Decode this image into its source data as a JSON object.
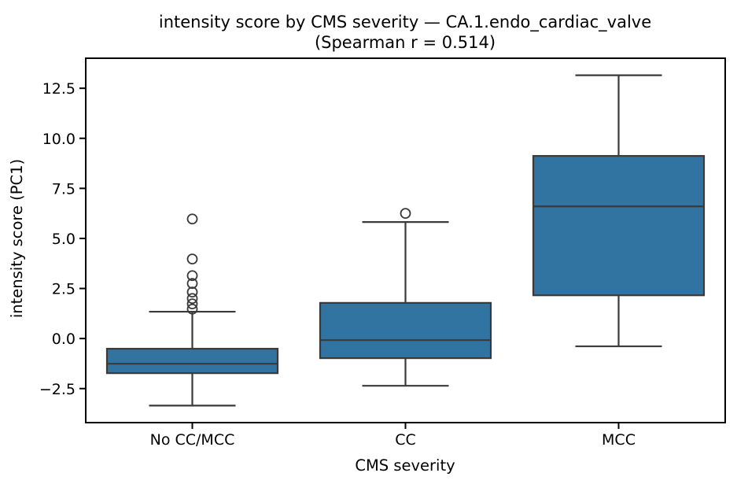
{
  "chart_data": {
    "type": "box",
    "title_line1": "intensity score by CMS severity — CA.1.endo_cardiac_valve",
    "title_line2": "(Spearman r = 0.514)",
    "spearman_r": 0.514,
    "xlabel": "CMS severity",
    "ylabel": "intensity score (PC1)",
    "categories": [
      "No CC/MCC",
      "CC",
      "MCC"
    ],
    "ylim": [
      -4.2,
      14.0
    ],
    "yticks": [
      -2.5,
      0.0,
      2.5,
      5.0,
      7.5,
      10.0,
      12.5
    ],
    "grid": false,
    "legend": false,
    "boxes": [
      {
        "category": "No CC/MCC",
        "whisker_low": -3.35,
        "q1": -1.73,
        "median": -1.26,
        "q3": -0.51,
        "whisker_high": 1.34,
        "outliers": [
          1.47,
          1.73,
          2.0,
          2.32,
          2.75,
          3.14,
          3.97,
          5.97
        ]
      },
      {
        "category": "CC",
        "whisker_low": -2.36,
        "q1": -0.98,
        "median": -0.08,
        "q3": 1.78,
        "whisker_high": 5.82,
        "outliers": [
          6.25
        ]
      },
      {
        "category": "MCC",
        "whisker_low": -0.39,
        "q1": 2.16,
        "median": 6.6,
        "q3": 9.12,
        "whisker_high": 13.15,
        "outliers": []
      }
    ],
    "colors": {
      "box_fill": "#3274A1",
      "box_line": "#3A3A3A",
      "axis": "#000000",
      "text": "#000000",
      "background": "#FFFFFF"
    }
  }
}
